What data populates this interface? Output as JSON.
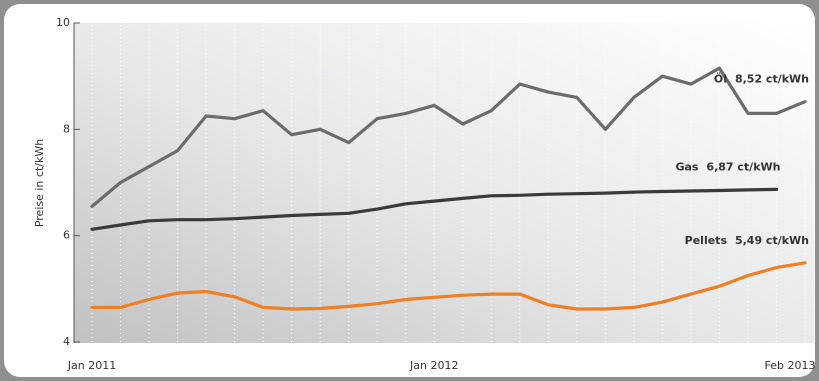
{
  "chart_data": {
    "type": "line",
    "y_label": "Preise in ct/kWh",
    "categories": [
      "Jan 2011",
      null,
      null,
      null,
      null,
      null,
      null,
      null,
      null,
      null,
      null,
      null,
      "Jan 2012",
      null,
      null,
      null,
      null,
      null,
      null,
      null,
      null,
      null,
      null,
      null,
      null,
      "Feb 2013"
    ],
    "ylim": [
      4,
      10
    ],
    "yticks": [
      4,
      6,
      8,
      10
    ],
    "grid": false,
    "series": [
      {
        "name": "Öl",
        "end_label": "8,52 ct/kWh",
        "color": "#6b6b6b",
        "values": [
          6.55,
          7.0,
          7.3,
          7.6,
          8.25,
          8.2,
          8.35,
          7.9,
          8.0,
          7.75,
          8.2,
          8.3,
          8.45,
          8.1,
          8.35,
          8.85,
          8.7,
          8.6,
          8.0,
          8.6,
          9.0,
          8.85,
          9.15,
          8.3,
          8.3,
          8.52
        ]
      },
      {
        "name": "Gas",
        "end_label": "6,87 ct/kWh",
        "color": "#3a3a3a",
        "values": [
          6.12,
          6.2,
          6.28,
          6.3,
          6.3,
          6.32,
          6.35,
          6.38,
          6.4,
          6.42,
          6.5,
          6.6,
          6.65,
          6.7,
          6.75,
          6.76,
          6.78,
          6.79,
          6.8,
          6.82,
          6.83,
          6.84,
          6.85,
          6.86,
          6.87,
          null
        ]
      },
      {
        "name": "Pellets",
        "end_label": "5,49 ct/kWh",
        "color": "#f07f22",
        "values": [
          4.65,
          4.65,
          4.8,
          4.92,
          4.95,
          4.85,
          4.65,
          4.62,
          4.63,
          4.67,
          4.72,
          4.8,
          4.84,
          4.88,
          4.9,
          4.9,
          4.7,
          4.62,
          4.62,
          4.65,
          4.75,
          4.9,
          5.05,
          5.25,
          5.4,
          5.49
        ]
      }
    ]
  }
}
